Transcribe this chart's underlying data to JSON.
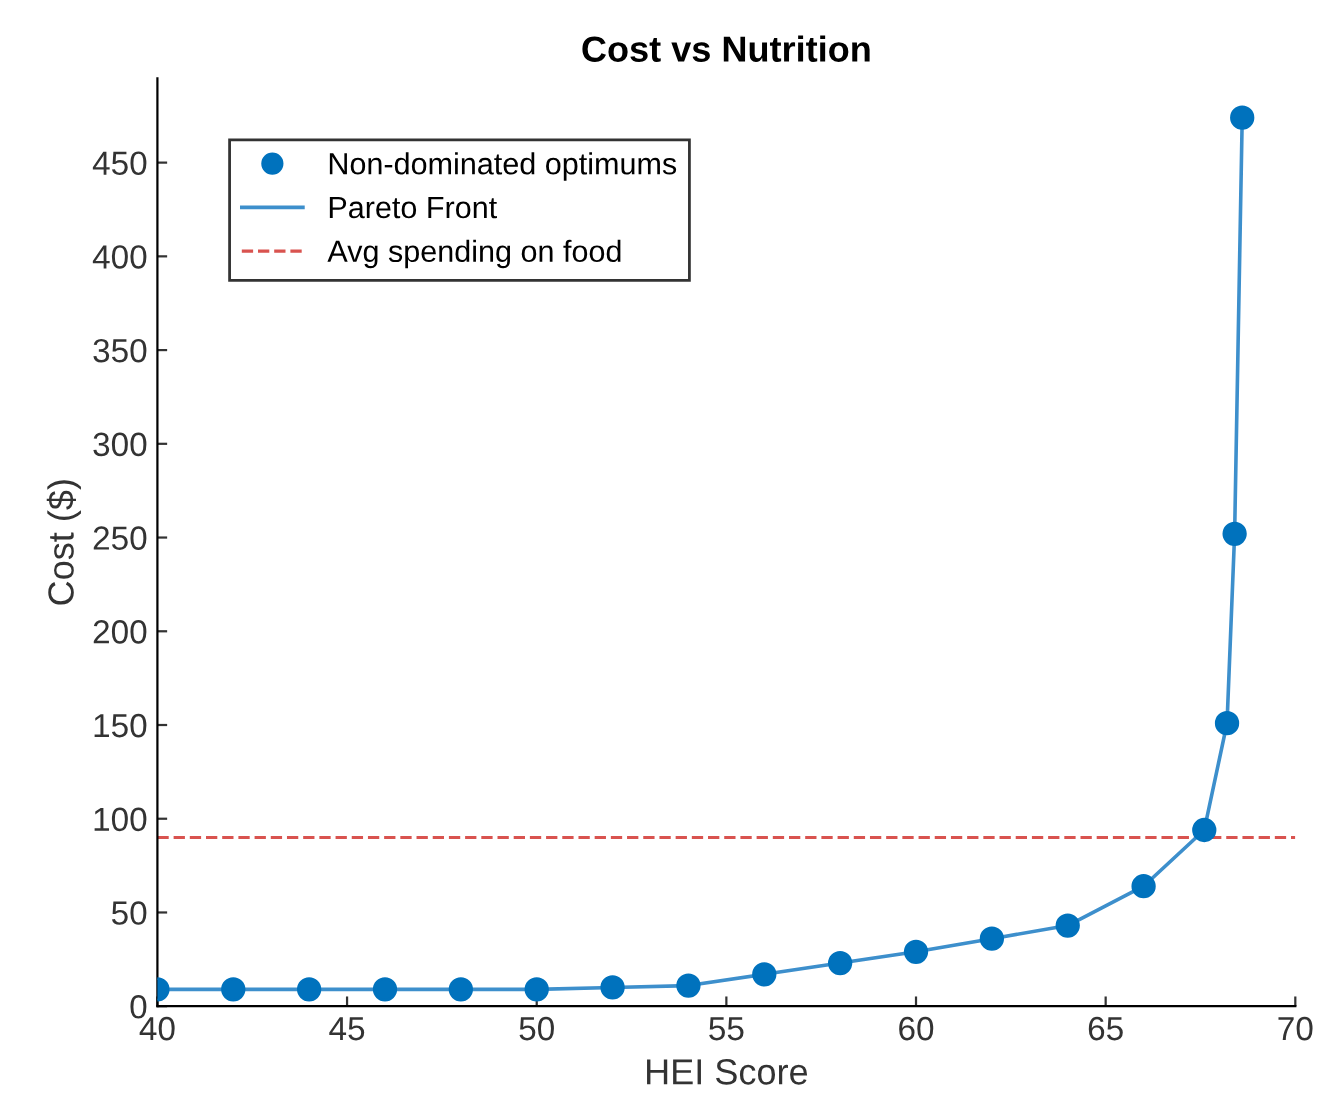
{
  "chart_data": {
    "type": "scatter",
    "title": "Cost vs Nutrition",
    "xlabel": "HEI Score",
    "ylabel": "Cost ($)",
    "xlim": [
      40,
      70
    ],
    "xticks": [
      40,
      45,
      50,
      55,
      60,
      65,
      70
    ],
    "ylim": [
      0,
      495
    ],
    "yticks": [
      0,
      50,
      100,
      150,
      200,
      250,
      300,
      350,
      400,
      450
    ],
    "series": [
      {
        "name": "Non-dominated optimums",
        "color": "#0072bd",
        "marker": "circle",
        "x": [
          40,
          42,
          44,
          46,
          48,
          50,
          52,
          54,
          56,
          58,
          60,
          62,
          64,
          66,
          67.6,
          68.2,
          68.4,
          68.6
        ],
        "values": [
          9,
          9,
          9,
          9,
          9,
          9,
          10,
          11,
          17,
          23,
          29,
          36,
          43,
          64,
          94,
          151,
          252,
          474
        ]
      },
      {
        "name": "Pareto Front",
        "type": "line",
        "color": "#3d8fcc",
        "line_style": "solid",
        "x": [
          40,
          42,
          44,
          46,
          48,
          50,
          52,
          54,
          56,
          58,
          60,
          62,
          64,
          66,
          67.6,
          68.2,
          68.4,
          68.6
        ],
        "values": [
          9,
          9,
          9,
          9,
          9,
          9,
          10,
          11,
          17,
          23,
          29,
          36,
          43,
          64,
          94,
          151,
          252,
          474
        ]
      }
    ],
    "ref_lines": [
      {
        "axis": "y",
        "value": 90,
        "label": "Avg spending on food",
        "color": "#d9534f",
        "line_style": "dashed"
      }
    ],
    "legend": "top left",
    "grid": false
  }
}
